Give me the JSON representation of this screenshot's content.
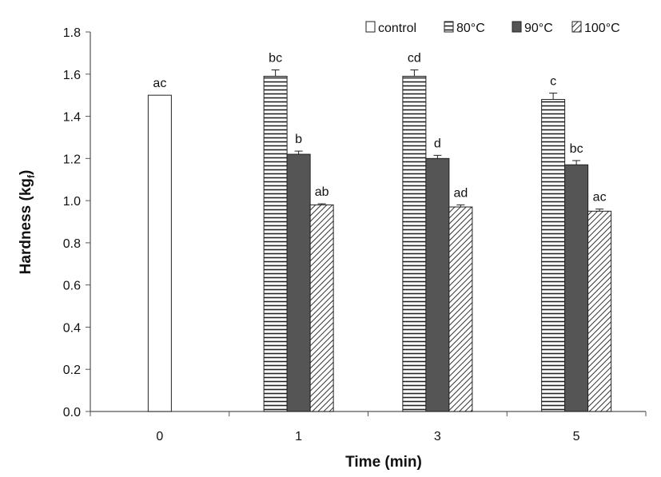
{
  "chart_data": {
    "type": "bar",
    "xlabel": "Time (min)",
    "ylabel": "Hardness (kg",
    "ylabel_sub": "f",
    "ylabel_close": ")",
    "categories": [
      "0",
      "1",
      "3",
      "5"
    ],
    "ylim": [
      0,
      1.8
    ],
    "yticks": [
      "0.0",
      "0.2",
      "0.4",
      "0.6",
      "0.8",
      "1.0",
      "1.2",
      "1.4",
      "1.6",
      "1.8"
    ],
    "grid": false,
    "legend_position": "top-right",
    "series": [
      {
        "name": "control",
        "pattern": "open",
        "values": [
          1.5,
          null,
          null,
          null
        ],
        "errors": [
          0,
          null,
          null,
          null
        ],
        "labels": [
          "ac",
          "",
          "",
          ""
        ]
      },
      {
        "name": "80°C",
        "pattern": "horizontal-lines",
        "values": [
          null,
          1.59,
          1.59,
          1.48
        ],
        "errors": [
          null,
          0.03,
          0.03,
          0.03
        ],
        "labels": [
          "",
          "bc",
          "cd",
          "c"
        ]
      },
      {
        "name": "90°C",
        "pattern": "solid-dark",
        "values": [
          null,
          1.22,
          1.2,
          1.17
        ],
        "errors": [
          null,
          0.015,
          0.015,
          0.02
        ],
        "labels": [
          "",
          "b",
          "d",
          "bc"
        ]
      },
      {
        "name": "100°C",
        "pattern": "diagonal-lines",
        "values": [
          null,
          0.98,
          0.97,
          0.95
        ],
        "errors": [
          null,
          0.005,
          0.01,
          0.01
        ],
        "labels": [
          "",
          "ab",
          "ad",
          "ac"
        ]
      }
    ]
  },
  "colors": {
    "axis": "#555555",
    "bar_dark": "#555555",
    "stroke": "#222222"
  }
}
